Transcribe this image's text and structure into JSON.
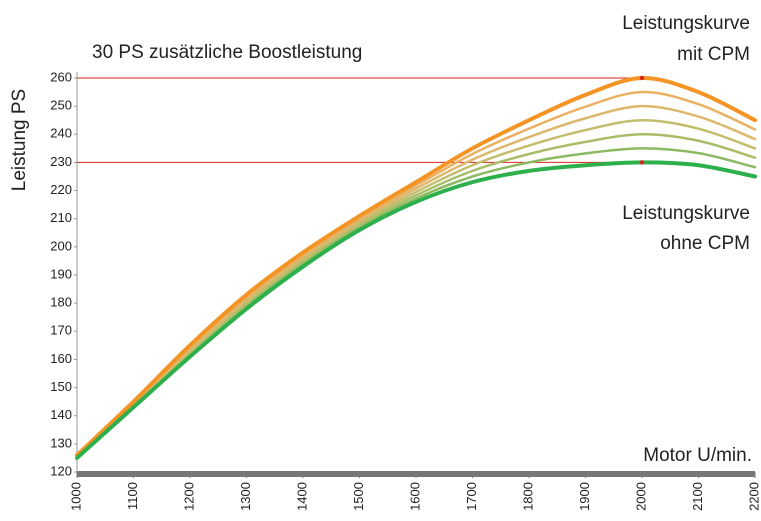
{
  "chart_data": {
    "type": "line",
    "ylabel": "Leistung PS",
    "xlabel": "Motor U/min.",
    "annotations": [
      "30 PS zusätzliche Boostleistung",
      "Leistungskurve",
      "mit CPM",
      "Leistungskurve",
      "ohne CPM"
    ],
    "x": [
      1000,
      1100,
      1200,
      1300,
      1400,
      1500,
      1600,
      1700,
      1800,
      1900,
      2000,
      2100,
      2200
    ],
    "series": [
      {
        "color": "#8cba62",
        "values": [
          125.2,
          143.3,
          161.7,
          178.8,
          193.8,
          206.8,
          217.2,
          225,
          230,
          233.2,
          235,
          233.3,
          228.3
        ]
      },
      {
        "color": "#a8bd68",
        "values": [
          125.3,
          143.7,
          162.3,
          179.7,
          194.7,
          207.7,
          218.3,
          227,
          233,
          237.3,
          240,
          237.7,
          231.7
        ]
      },
      {
        "color": "#c4bd6c",
        "values": [
          125.5,
          144,
          163,
          180.5,
          195.5,
          208.5,
          219.5,
          229,
          236,
          241.5,
          245,
          242,
          235
        ]
      },
      {
        "color": "#dcb86c",
        "values": [
          125.7,
          144.3,
          163.7,
          181.3,
          196.3,
          209.3,
          220.7,
          231,
          239,
          245.7,
          250,
          246.3,
          238.3
        ]
      },
      {
        "color": "#ebb062",
        "values": [
          125.8,
          144.7,
          164.3,
          182.2,
          197.2,
          210.2,
          221.8,
          233,
          242,
          249.8,
          255,
          250.7,
          241.7
        ]
      },
      {
        "color": "#f39425",
        "values": [
          126,
          145,
          165,
          183,
          198,
          211,
          223,
          235,
          245,
          254,
          260,
          255,
          245
        ]
      },
      {
        "color": "#2db04b",
        "values": [
          125,
          143,
          161,
          178,
          193,
          206,
          216,
          223,
          227,
          229,
          230,
          229,
          225
        ]
      }
    ],
    "markers": [
      {
        "x": 2000,
        "y": 260
      },
      {
        "x": 2000,
        "y": 230
      }
    ],
    "marker_color": "#d9261c",
    "xlim": [
      1000,
      2200
    ],
    "xticks": [
      1000,
      1100,
      1200,
      1300,
      1400,
      1500,
      1600,
      1700,
      1800,
      1900,
      2000,
      2100,
      2200
    ],
    "ylim": [
      120,
      260
    ],
    "yticks": [
      120,
      130,
      140,
      150,
      160,
      170,
      180,
      190,
      200,
      210,
      220,
      230,
      240,
      250,
      260
    ]
  }
}
